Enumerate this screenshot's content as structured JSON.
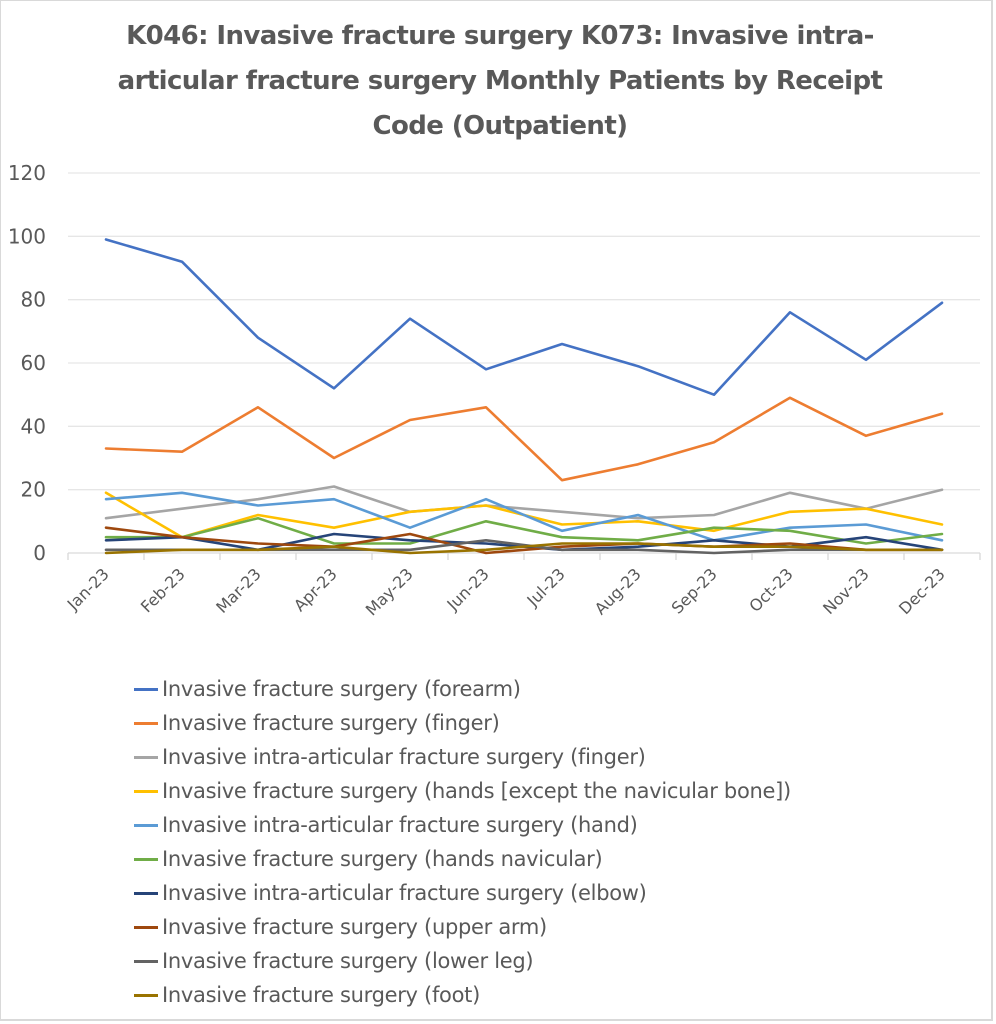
{
  "chart_data": {
    "type": "line",
    "title_lines": [
      "K046: Invasive fracture surgery K073: Invasive intra-",
      "articular fracture surgery     Monthly Patients by Receipt",
      "Code (Outpatient)"
    ],
    "title": "K046: Invasive fracture surgery K073: Invasive intra-articular fracture surgery Monthly Patients by Receipt Code (Outpatient)",
    "xlabel": "",
    "ylabel": "",
    "ylim": [
      0,
      120
    ],
    "yticks": [
      "0",
      "20",
      "40",
      "60",
      "80",
      "100",
      "120"
    ],
    "ytick_values": [
      0,
      20,
      40,
      60,
      80,
      100,
      120
    ],
    "grid": true,
    "legend_position": "bottom",
    "categories": [
      "Jan-23",
      "Feb-23",
      "Mar-23",
      "Apr-23",
      "May-23",
      "Jun-23",
      "Jul-23",
      "Aug-23",
      "Sep-23",
      "Oct-23",
      "Nov-23",
      "Dec-23"
    ],
    "series": [
      {
        "name": "Invasive fracture surgery (forearm)",
        "color": "#4472C4",
        "values": [
          99,
          92,
          68,
          52,
          74,
          58,
          66,
          59,
          50,
          76,
          61,
          79
        ]
      },
      {
        "name": "Invasive fracture surgery (finger)",
        "color": "#ED7D31",
        "values": [
          33,
          32,
          46,
          30,
          42,
          46,
          23,
          28,
          35,
          49,
          37,
          44
        ]
      },
      {
        "name": "Invasive intra-articular fracture surgery (finger)",
        "color": "#A5A5A5",
        "values": [
          11,
          14,
          17,
          21,
          13,
          15,
          13,
          11,
          12,
          19,
          14,
          20
        ]
      },
      {
        "name": "Invasive fracture surgery (hands [except the navicular bone])",
        "color": "#FFC000",
        "values": [
          19,
          5,
          12,
          8,
          13,
          15,
          9,
          10,
          7,
          13,
          14,
          9
        ]
      },
      {
        "name": "Invasive intra-articular fracture surgery (hand)",
        "color": "#5B9BD5",
        "values": [
          17,
          19,
          15,
          17,
          8,
          17,
          7,
          12,
          4,
          8,
          9,
          4
        ]
      },
      {
        "name": "Invasive fracture surgery (hands navicular)",
        "color": "#70AD47",
        "values": [
          5,
          5,
          11,
          3,
          3,
          10,
          5,
          4,
          8,
          7,
          3,
          6
        ]
      },
      {
        "name": "Invasive intra-articular fracture surgery (elbow)",
        "color": "#264478",
        "values": [
          4,
          5,
          1,
          6,
          4,
          3,
          1,
          2,
          4,
          2,
          5,
          1
        ]
      },
      {
        "name": "Invasive fracture surgery (upper arm)",
        "color": "#9E480E",
        "values": [
          8,
          5,
          3,
          2,
          6,
          0,
          2,
          3,
          2,
          3,
          1,
          1
        ]
      },
      {
        "name": "Invasive fracture surgery (lower leg)",
        "color": "#636363",
        "values": [
          1,
          1,
          1,
          1,
          1,
          4,
          1,
          1,
          0,
          1,
          1,
          1
        ]
      },
      {
        "name": "Invasive fracture surgery (foot)",
        "color": "#997300",
        "values": [
          0,
          1,
          1,
          2,
          0,
          1,
          3,
          3,
          2,
          2,
          1,
          1
        ]
      }
    ]
  }
}
